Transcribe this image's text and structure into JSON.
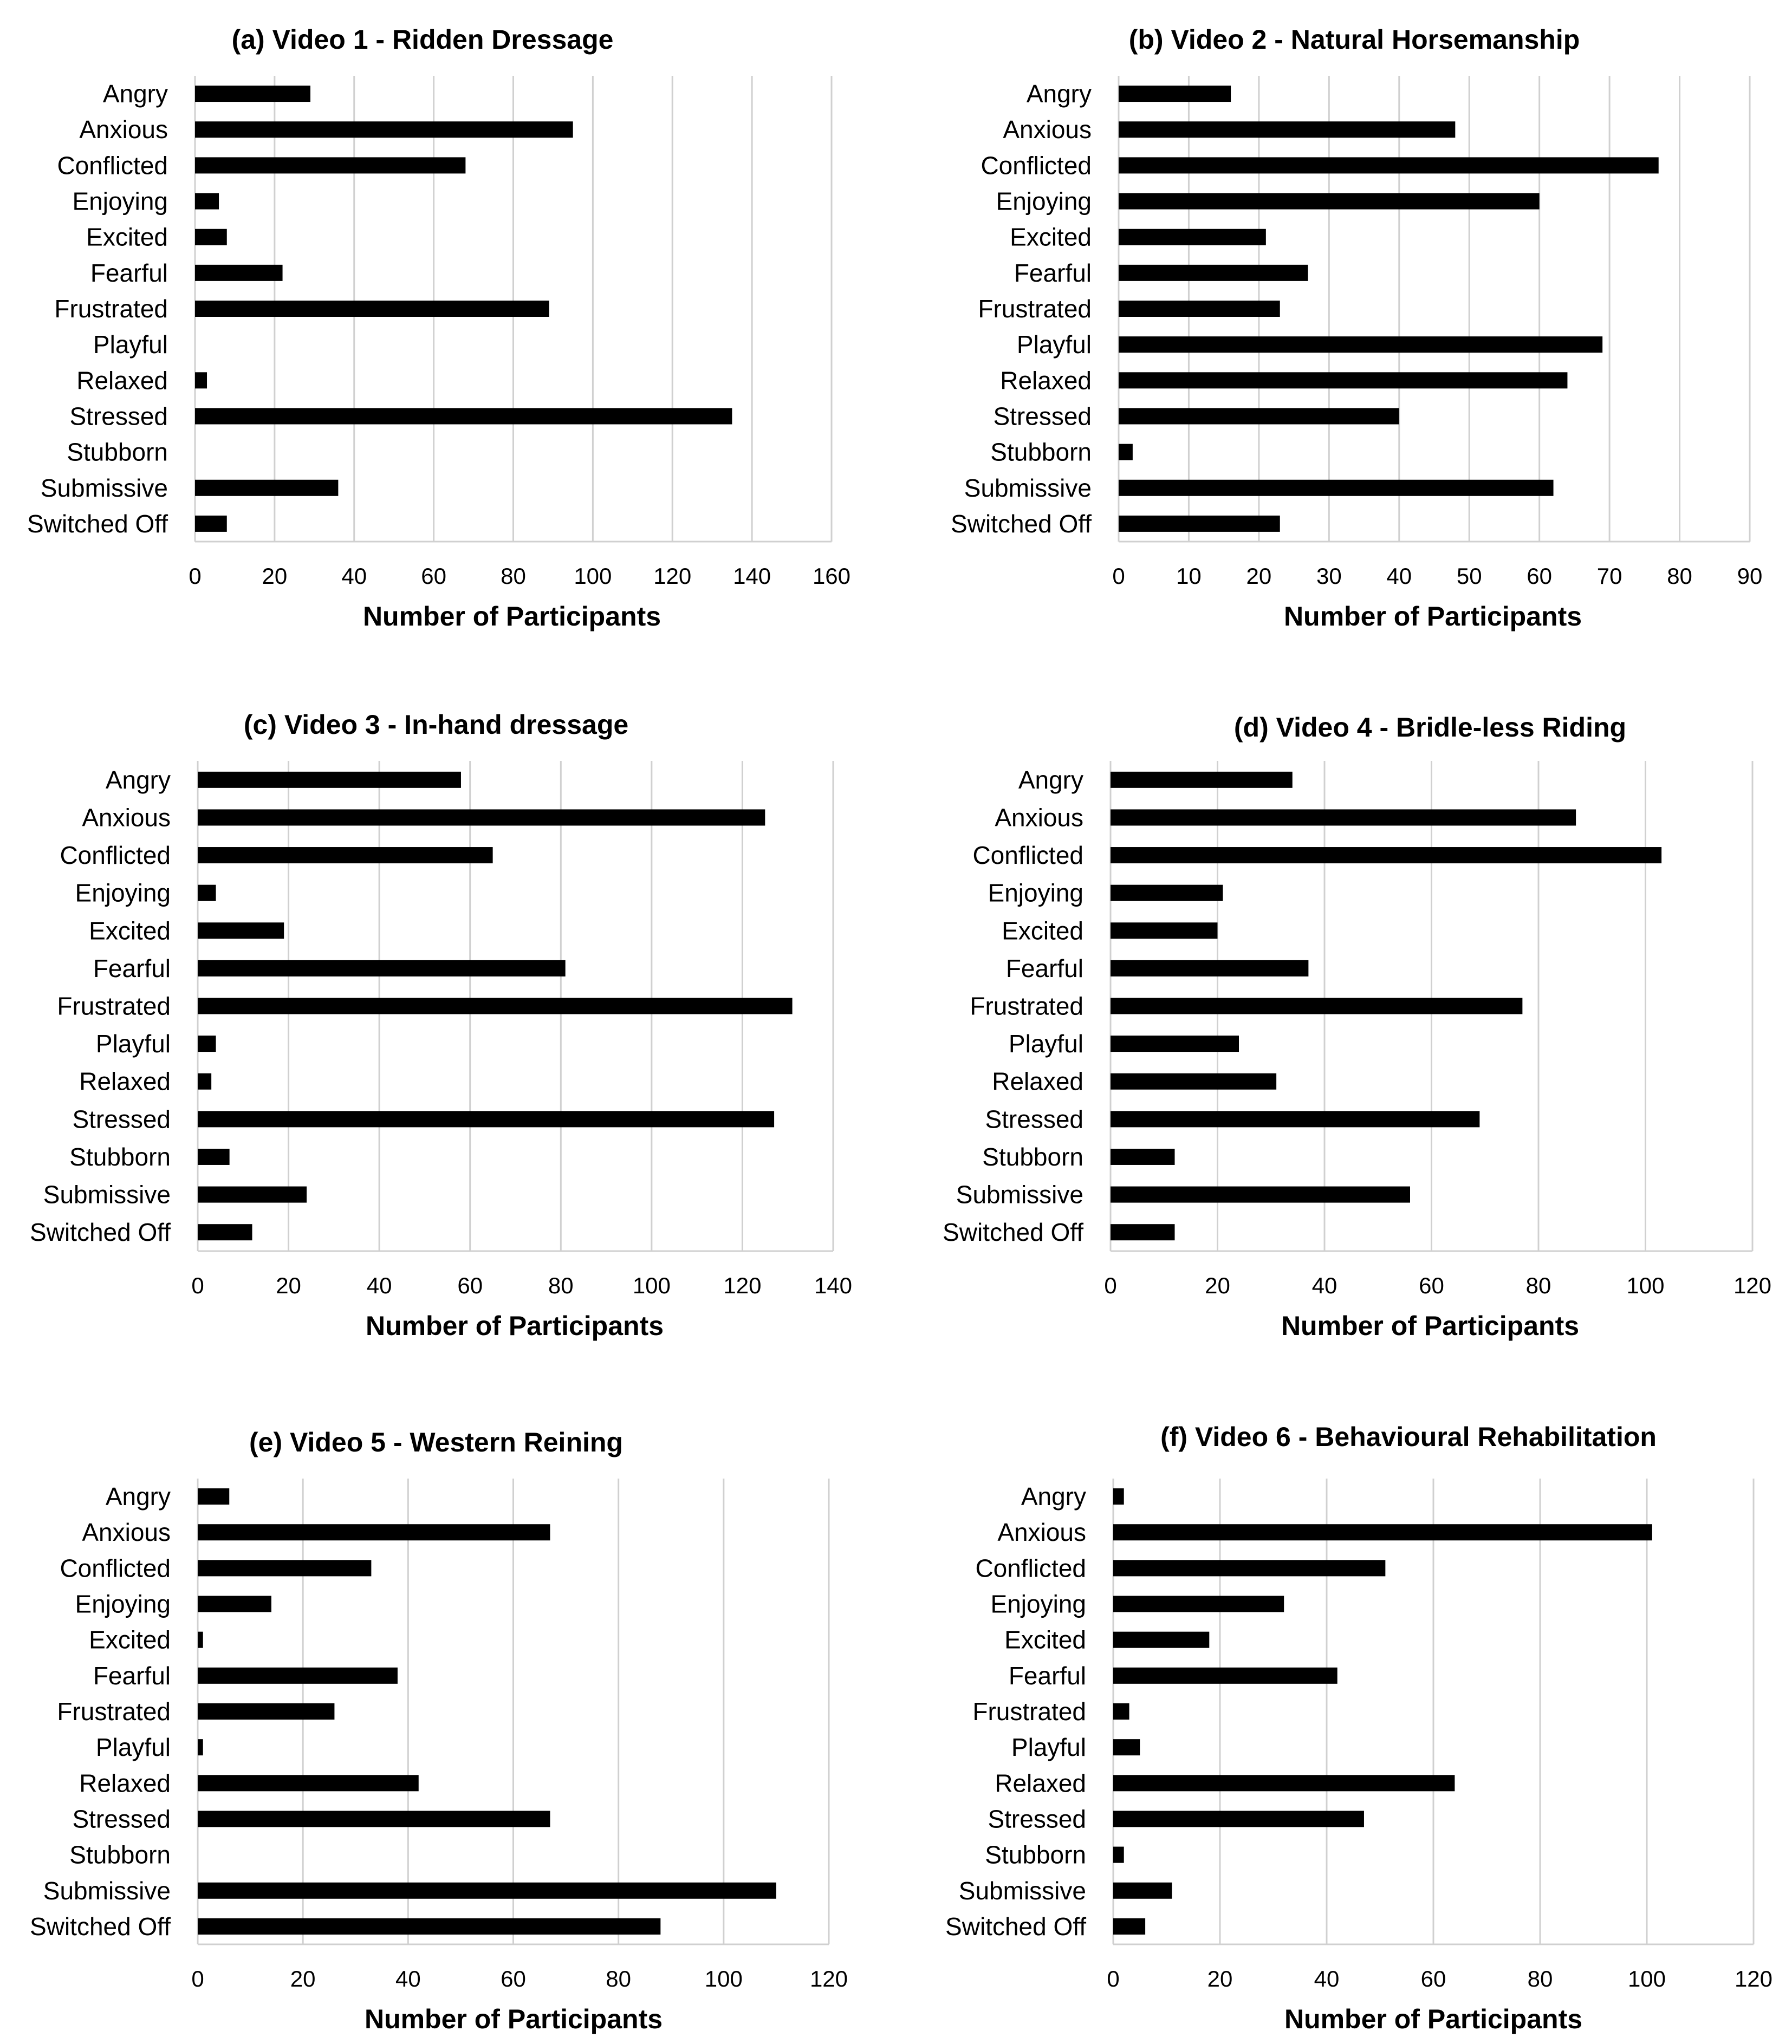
{
  "colors": {
    "bar": "#000000",
    "grid": "#d0d0d0",
    "text": "#000000",
    "background": "#ffffff"
  },
  "chart_data": [
    {
      "type": "bar",
      "orientation": "horizontal",
      "title": "(a) Video 1 - Ridden Dressage",
      "xlabel": "Number of Participants",
      "ylabel": "",
      "xlim": [
        0,
        160
      ],
      "ticks": [
        0,
        20,
        40,
        60,
        80,
        100,
        120,
        140,
        160
      ],
      "tick_labels": [
        "0",
        "20",
        "40",
        "60",
        "80",
        "100",
        "120",
        "140",
        "160"
      ],
      "categories": [
        "Angry",
        "Anxious",
        "Conflicted",
        "Enjoying",
        "Excited",
        "Fearful",
        "Frustrated",
        "Playful",
        "Relaxed",
        "Stressed",
        "Stubborn",
        "Submissive",
        "Switched Off"
      ],
      "values": [
        29,
        95,
        68,
        6,
        8,
        22,
        89,
        0,
        3,
        135,
        0,
        36,
        8
      ],
      "grid": true,
      "legend": "none"
    },
    {
      "type": "bar",
      "orientation": "horizontal",
      "title": "(b) Video 2 - Natural Horsemanship",
      "xlabel": "Number of Participants",
      "ylabel": "",
      "xlim": [
        0,
        90
      ],
      "ticks": [
        0,
        10,
        20,
        30,
        40,
        50,
        60,
        70,
        80,
        90
      ],
      "tick_labels": [
        "0",
        "10",
        "20",
        "30",
        "40",
        "50",
        "60",
        "70",
        "80",
        "90"
      ],
      "categories": [
        "Angry",
        "Anxious",
        "Conflicted",
        "Enjoying",
        "Excited",
        "Fearful",
        "Frustrated",
        "Playful",
        "Relaxed",
        "Stressed",
        "Stubborn",
        "Submissive",
        "Switched Off"
      ],
      "values": [
        16,
        48,
        77,
        60,
        21,
        27,
        23,
        69,
        64,
        40,
        2,
        62,
        23
      ],
      "grid": true,
      "legend": "none"
    },
    {
      "type": "bar",
      "orientation": "horizontal",
      "title": "(c) Video 3 - In-hand dressage",
      "xlabel": "Number of Participants",
      "ylabel": "",
      "xlim": [
        0,
        140
      ],
      "ticks": [
        0,
        20,
        40,
        60,
        80,
        100,
        120,
        140
      ],
      "tick_labels": [
        "0",
        "20",
        "40",
        "60",
        "80",
        "100",
        "120",
        "140"
      ],
      "categories": [
        "Angry",
        "Anxious",
        "Conflicted",
        "Enjoying",
        "Excited",
        "Fearful",
        "Frustrated",
        "Playful",
        "Relaxed",
        "Stressed",
        "Stubborn",
        "Submissive",
        "Switched Off"
      ],
      "values": [
        58,
        125,
        65,
        4,
        19,
        81,
        131,
        4,
        3,
        127,
        7,
        24,
        12
      ],
      "grid": true,
      "legend": "none"
    },
    {
      "type": "bar",
      "orientation": "horizontal",
      "title": "(d) Video 4 - Bridle-less Riding",
      "xlabel": "Number of Participants",
      "ylabel": "",
      "xlim": [
        0,
        120
      ],
      "ticks": [
        0,
        20,
        40,
        60,
        80,
        100,
        120
      ],
      "tick_labels": [
        "0",
        "20",
        "40",
        "60",
        "80",
        "100",
        "120"
      ],
      "categories": [
        "Angry",
        "Anxious",
        "Conflicted",
        "Enjoying",
        "Excited",
        "Fearful",
        "Frustrated",
        "Playful",
        "Relaxed",
        "Stressed",
        "Stubborn",
        "Submissive",
        "Switched Off"
      ],
      "values": [
        34,
        87,
        103,
        21,
        20,
        37,
        77,
        24,
        31,
        69,
        12,
        56,
        12
      ],
      "grid": true,
      "legend": "none"
    },
    {
      "type": "bar",
      "orientation": "horizontal",
      "title": "(e) Video 5 - Western Reining",
      "xlabel": "Number of Participants",
      "ylabel": "",
      "xlim": [
        0,
        120
      ],
      "ticks": [
        0,
        20,
        40,
        60,
        80,
        100,
        120
      ],
      "tick_labels": [
        "0",
        "20",
        "40",
        "60",
        "80",
        "100",
        "120"
      ],
      "categories": [
        "Angry",
        "Anxious",
        "Conflicted",
        "Enjoying",
        "Excited",
        "Fearful",
        "Frustrated",
        "Playful",
        "Relaxed",
        "Stressed",
        "Stubborn",
        "Submissive",
        "Switched Off"
      ],
      "values": [
        6,
        67,
        33,
        14,
        1,
        38,
        26,
        1,
        42,
        67,
        0,
        110,
        88
      ],
      "grid": true,
      "legend": "none"
    },
    {
      "type": "bar",
      "orientation": "horizontal",
      "title": "(f) Video 6 - Behavioural Rehabilitation",
      "xlabel": "Number of Participants",
      "ylabel": "",
      "xlim": [
        0,
        120
      ],
      "ticks": [
        0,
        20,
        40,
        60,
        80,
        100,
        120
      ],
      "tick_labels": [
        "0",
        "20",
        "40",
        "60",
        "80",
        "100",
        "120"
      ],
      "categories": [
        "Angry",
        "Anxious",
        "Conflicted",
        "Enjoying",
        "Excited",
        "Fearful",
        "Frustrated",
        "Playful",
        "Relaxed",
        "Stressed",
        "Stubborn",
        "Submissive",
        "Switched Off"
      ],
      "values": [
        2,
        101,
        51,
        32,
        18,
        42,
        3,
        5,
        64,
        47,
        2,
        11,
        6
      ],
      "grid": true,
      "legend": "none"
    }
  ]
}
